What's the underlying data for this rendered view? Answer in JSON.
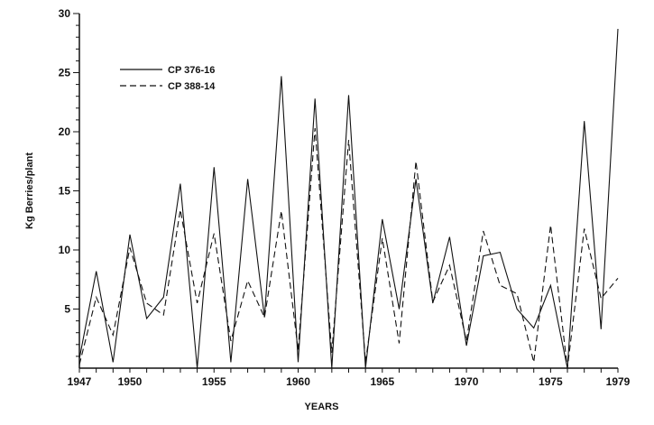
{
  "chart_data": {
    "type": "line",
    "xlabel": "YEARS",
    "ylabel": "Kg Berries/plant",
    "xlim": [
      1947,
      1979
    ],
    "ylim": [
      0,
      30
    ],
    "x_tick_labels": [
      "1947",
      "1950",
      "1955",
      "1960",
      "1965",
      "1970",
      "1975",
      "1979"
    ],
    "y_tick_labels": [
      "5",
      "10",
      "15",
      "20",
      "25",
      "30"
    ],
    "legend_position": "top-left",
    "x": [
      1947,
      1948,
      1949,
      1950,
      1951,
      1952,
      1953,
      1954,
      1955,
      1956,
      1957,
      1958,
      1959,
      1960,
      1961,
      1962,
      1963,
      1964,
      1965,
      1966,
      1967,
      1968,
      1969,
      1970,
      1971,
      1972,
      1973,
      1974,
      1975,
      1976,
      1977,
      1978,
      1979
    ],
    "series": [
      {
        "name": "CP 376-16",
        "style": "solid",
        "values": [
          0.8,
          8.2,
          0.5,
          11.3,
          4.2,
          6.0,
          15.6,
          0.0,
          17.0,
          0.5,
          16.0,
          4.3,
          24.7,
          0.5,
          22.8,
          0.0,
          23.1,
          0.0,
          12.6,
          5.0,
          16.0,
          5.5,
          11.1,
          1.9,
          9.5,
          9.8,
          5.0,
          3.4,
          7.0,
          0.0,
          20.9,
          3.3,
          28.7
        ]
      },
      {
        "name": "CP 388-14",
        "style": "dashed",
        "values": [
          0.3,
          6.0,
          2.8,
          10.2,
          5.5,
          4.5,
          13.4,
          5.5,
          11.4,
          2.3,
          7.4,
          4.3,
          13.3,
          1.5,
          20.3,
          1.3,
          19.3,
          0.5,
          11.0,
          2.1,
          17.5,
          5.6,
          8.7,
          2.3,
          11.6,
          7.0,
          6.3,
          0.5,
          12.1,
          0.0,
          11.8,
          5.9,
          7.6
        ]
      }
    ]
  }
}
